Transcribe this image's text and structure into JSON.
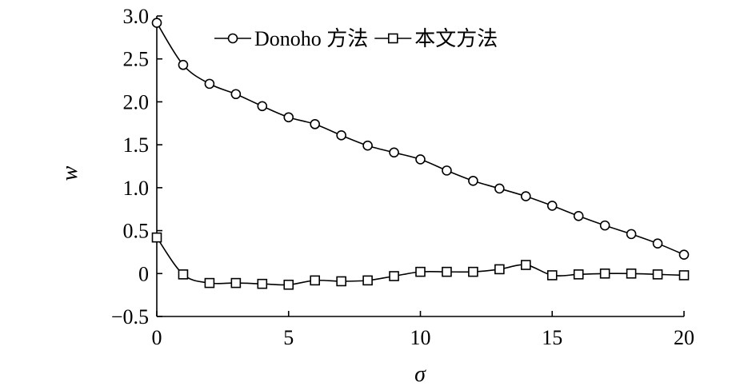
{
  "chart_data": {
    "type": "line",
    "xlabel": "σ",
    "ylabel": "w",
    "xlim": [
      0,
      20
    ],
    "ylim": [
      -0.5,
      3.0
    ],
    "xticks": [
      0,
      5,
      10,
      15,
      20
    ],
    "xtick_labels": [
      "0",
      "5",
      "10",
      "15",
      "20"
    ],
    "yticks": [
      -0.5,
      0,
      0.5,
      1.0,
      1.5,
      2.0,
      2.5,
      3.0
    ],
    "ytick_labels": [
      "−0.5",
      "0",
      "0.5",
      "1.0",
      "1.5",
      "2.0",
      "2.5",
      "3.0"
    ],
    "grid": false,
    "legend_position": "top",
    "x": [
      0,
      1,
      2,
      3,
      4,
      5,
      6,
      7,
      8,
      9,
      10,
      11,
      12,
      13,
      14,
      15,
      16,
      17,
      18,
      19,
      20
    ],
    "series": [
      {
        "name": "Donoho 方法",
        "marker": "circle",
        "values": [
          2.92,
          2.43,
          2.21,
          2.09,
          1.95,
          1.82,
          1.74,
          1.61,
          1.49,
          1.41,
          1.33,
          1.2,
          1.08,
          0.99,
          0.9,
          0.79,
          0.67,
          0.56,
          0.46,
          0.35,
          0.22
        ]
      },
      {
        "name": "本文方法",
        "marker": "square",
        "values": [
          0.42,
          -0.01,
          -0.11,
          -0.11,
          -0.12,
          -0.13,
          -0.08,
          -0.09,
          -0.08,
          -0.03,
          0.02,
          0.02,
          0.02,
          0.05,
          0.1,
          -0.02,
          -0.01,
          0.0,
          0.0,
          -0.01,
          -0.02
        ]
      }
    ]
  }
}
